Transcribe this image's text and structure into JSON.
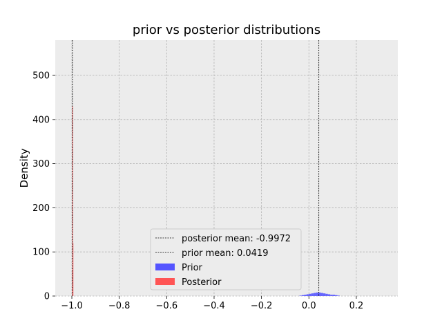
{
  "chart_data": {
    "type": "histogram",
    "title": "prior vs posterior distributions",
    "xlabel": "",
    "ylabel": "Density",
    "xlim": [
      -1.07,
      0.375
    ],
    "ylim": [
      0,
      580
    ],
    "xticks": [
      -1.0,
      -0.8,
      -0.6,
      -0.4,
      -0.2,
      0.0,
      0.2
    ],
    "xtick_labels": [
      "−1.0",
      "−0.8",
      "−0.6",
      "−0.4",
      "−0.2",
      "0.0",
      "0.2"
    ],
    "yticks": [
      0,
      100,
      200,
      300,
      400,
      500
    ],
    "ytick_labels": [
      "0",
      "100",
      "200",
      "300",
      "400",
      "500"
    ],
    "grid": true,
    "legend_position": "lower-center",
    "colors": {
      "prior": "#5555ff",
      "posterior": "#ff5555",
      "mean_line": "#000000",
      "plot_bg": "#ececec",
      "grid": "#b0b0b0"
    },
    "vlines": [
      {
        "label": "posterior mean: -0.9972",
        "x": -0.9972
      },
      {
        "label": "prior mean: 0.0419",
        "x": 0.0419
      }
    ],
    "series": [
      {
        "name": "Prior",
        "type": "histogram",
        "bins": [
          {
            "x0": -0.04,
            "x1": -0.03,
            "y": 1
          },
          {
            "x0": -0.03,
            "x1": -0.02,
            "y": 2
          },
          {
            "x0": -0.02,
            "x1": -0.01,
            "y": 3
          },
          {
            "x0": -0.01,
            "x1": 0.0,
            "y": 4
          },
          {
            "x0": 0.0,
            "x1": 0.01,
            "y": 5
          },
          {
            "x0": 0.01,
            "x1": 0.02,
            "y": 6
          },
          {
            "x0": 0.02,
            "x1": 0.03,
            "y": 7
          },
          {
            "x0": 0.03,
            "x1": 0.04,
            "y": 8
          },
          {
            "x0": 0.04,
            "x1": 0.05,
            "y": 8
          },
          {
            "x0": 0.05,
            "x1": 0.06,
            "y": 7
          },
          {
            "x0": 0.06,
            "x1": 0.07,
            "y": 6
          },
          {
            "x0": 0.07,
            "x1": 0.08,
            "y": 5
          },
          {
            "x0": 0.08,
            "x1": 0.09,
            "y": 4
          },
          {
            "x0": 0.09,
            "x1": 0.1,
            "y": 3
          },
          {
            "x0": 0.1,
            "x1": 0.11,
            "y": 3
          },
          {
            "x0": 0.11,
            "x1": 0.12,
            "y": 2
          },
          {
            "x0": 0.12,
            "x1": 0.13,
            "y": 1
          }
        ]
      },
      {
        "name": "Posterior",
        "type": "histogram",
        "bins": [
          {
            "x0": -0.9985,
            "x1": -0.9975,
            "y": 60
          },
          {
            "x0": -0.9975,
            "x1": -0.9965,
            "y": 430
          },
          {
            "x0": -0.9965,
            "x1": -0.9955,
            "y": 120
          }
        ]
      }
    ],
    "legend": [
      {
        "label": "posterior mean: -0.9972",
        "kind": "dashed-line"
      },
      {
        "label": "prior mean: 0.0419",
        "kind": "dashed-line"
      },
      {
        "label": "Prior",
        "kind": "patch",
        "series": "prior"
      },
      {
        "label": "Posterior",
        "kind": "patch",
        "series": "posterior"
      }
    ]
  }
}
